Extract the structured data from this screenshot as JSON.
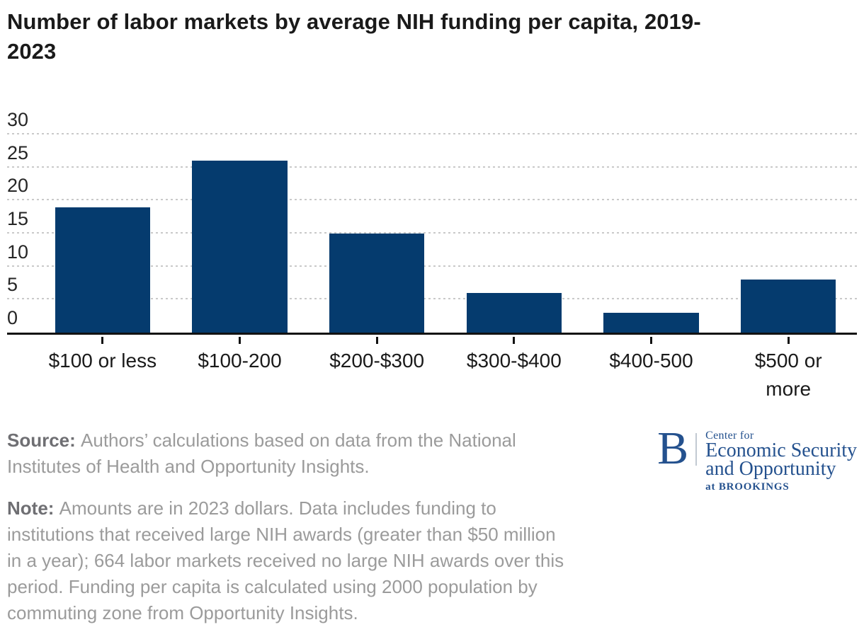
{
  "title": "Number of labor markets by average NIH funding per capita, 2019-\n2023",
  "chart_data": {
    "type": "bar",
    "title": "Number of labor markets by average NIH funding per capita, 2019-2023",
    "categories": [
      "$100 or less",
      "$100-200",
      "$200-$300",
      "$300-$400",
      "$400-500",
      "$500 or\nmore"
    ],
    "values": [
      19,
      26,
      15,
      6,
      3,
      8
    ],
    "xlabel": "",
    "ylabel": "",
    "ylim": [
      0,
      30
    ],
    "yticks": [
      0,
      5,
      10,
      15,
      20,
      25,
      30
    ],
    "grid": "horizontal-dotted",
    "legend": "none",
    "bar_color": "#053b6e"
  },
  "footer": {
    "source": {
      "label": "Source:",
      "lines": [
        "Authors’ calculations based on data from the National",
        "Institutes of Health and Opportunity Insights."
      ]
    },
    "note": {
      "label": "Note:",
      "lines": [
        "Amounts are in 2023 dollars. Data includes funding to",
        "institutions that received large NIH awards (greater than $50 million",
        "in a year); 664 labor markets received no large NIH awards over this",
        "period. Funding per capita is calculated using 2000 population by",
        "commuting zone from Opportunity Insights."
      ]
    }
  },
  "logo": {
    "b": "B",
    "center_for": "Center for",
    "name_line1": "Economic Security",
    "name_line2": "and Opportunity",
    "at_brookings": "at BROOKINGS"
  },
  "colors": {
    "bar": "#053b6e",
    "axis": "#121212",
    "grid_dots": "#c9c9c9",
    "title_text": "#1a1a1a",
    "axis_text": "#262626",
    "footer_text": "#9b9b9b",
    "footer_lead_text": "#6f6f73",
    "logo_navy": "#24518e"
  }
}
